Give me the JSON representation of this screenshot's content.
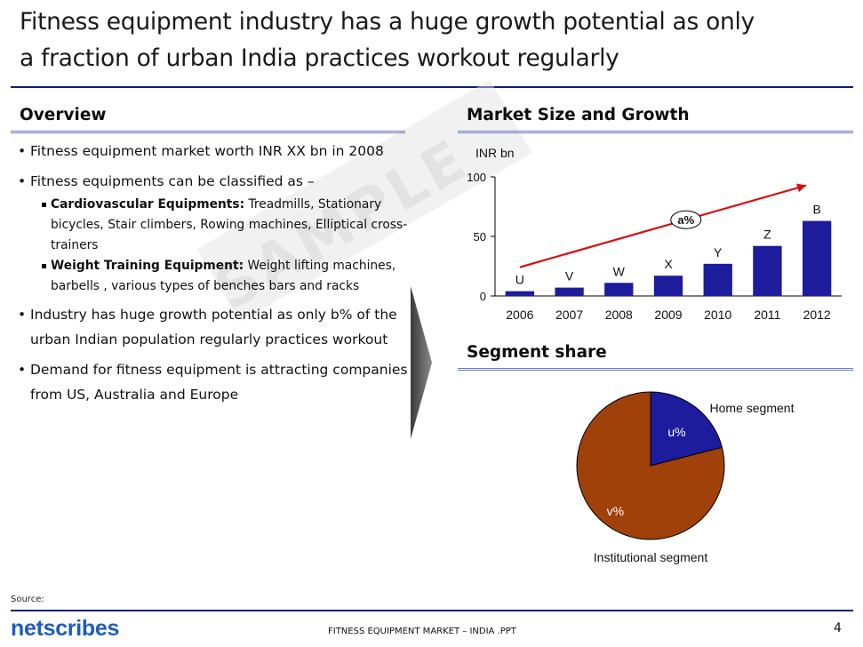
{
  "title": {
    "line1": "Fitness equipment industry has a huge growth  potential as only",
    "line2": "a fraction of urban India practices workout regularly"
  },
  "overview": {
    "heading": "Overview",
    "bullet1": "Fitness equipment market worth INR XX bn in 2008",
    "bullet2": "Fitness equipments can be classified as –",
    "sub1_bold": "Cardiovascular Equipments:",
    "sub1_text": " Treadmills, Stationary bicycles, Stair climbers, Rowing machines, Elliptical cross-trainers",
    "sub2_bold": "Weight Training Equipment:",
    "sub2_text": " Weight lifting machines, barbells , various types of benches bars and racks",
    "bullet3": "Industry has huge growth potential as only b% of the urban Indian  population regularly practices workout",
    "bullet4": "Demand for fitness equipment is attracting companies from US, Australia and Europe"
  },
  "watermark": "SAMPLE",
  "market": {
    "heading": "Market Size and Growth"
  },
  "segment": {
    "heading": "Segment share"
  },
  "chart_data": [
    {
      "type": "bar",
      "title": "Market Size and Growth",
      "ylabel": "INR bn",
      "ylim": [
        0,
        100
      ],
      "yticks": [
        "0",
        "50",
        "100"
      ],
      "categories": [
        "2006",
        "2007",
        "2008",
        "2009",
        "2010",
        "2011",
        "2012"
      ],
      "values": [
        4,
        7,
        11,
        17,
        27,
        42,
        63
      ],
      "data_labels": [
        "U",
        "V",
        "W",
        "X",
        "Y",
        "Z",
        "B"
      ],
      "annotation": "a%",
      "color": "#1c1c9c"
    },
    {
      "type": "pie",
      "title": "Segment share",
      "labels": [
        "Home segment",
        "Institutional segment"
      ],
      "value_labels": [
        "u%",
        "v%"
      ],
      "values": [
        21,
        79
      ],
      "colors": [
        "#1c1c9c",
        "#a0410a"
      ]
    }
  ],
  "footer": {
    "source": "Source:",
    "brand": "netscribes",
    "center": "FITNESS EQUIPMENT MARKET – INDIA .PPT",
    "page": "4"
  }
}
